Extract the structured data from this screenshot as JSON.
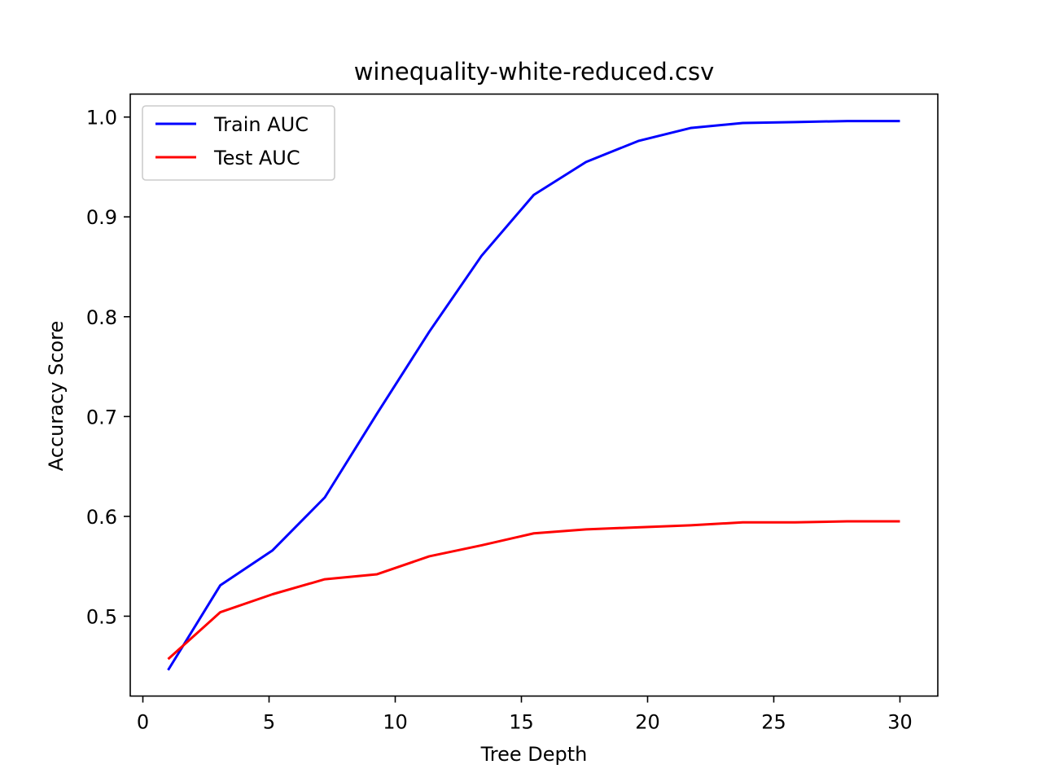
{
  "chart_data": {
    "type": "line",
    "title": "winequality-white-reduced.csv",
    "xlabel": "Tree Depth",
    "ylabel": "Accuracy Score",
    "xlim": [
      -0.5,
      31.5
    ],
    "ylim": [
      0.42,
      1.023
    ],
    "xticks": [
      0,
      5,
      10,
      15,
      20,
      25,
      30
    ],
    "xtick_labels": [
      "0",
      "5",
      "10",
      "15",
      "20",
      "25",
      "30"
    ],
    "yticks": [
      0.5,
      0.6,
      0.7,
      0.8,
      0.9,
      1.0
    ],
    "ytick_labels": [
      "0.5",
      "0.6",
      "0.7",
      "0.8",
      "0.9",
      "1.0"
    ],
    "grid": false,
    "legend_position": "top-left",
    "x": [
      1,
      3.07,
      5.14,
      7.21,
      9.28,
      11.35,
      13.42,
      15.49,
      17.56,
      19.63,
      21.7,
      23.77,
      25.84,
      27.91,
      30
    ],
    "series": [
      {
        "name": "Train AUC",
        "color": "#0000ff",
        "values": [
          0.446,
          0.531,
          0.566,
          0.619,
          0.703,
          0.785,
          0.861,
          0.922,
          0.955,
          0.976,
          0.989,
          0.994,
          0.995,
          0.996,
          0.996
        ]
      },
      {
        "name": "Test AUC",
        "color": "#ff0000",
        "values": [
          0.457,
          0.504,
          0.522,
          0.537,
          0.542,
          0.56,
          0.571,
          0.583,
          0.587,
          0.589,
          0.591,
          0.594,
          0.594,
          0.595,
          0.595
        ]
      }
    ]
  }
}
